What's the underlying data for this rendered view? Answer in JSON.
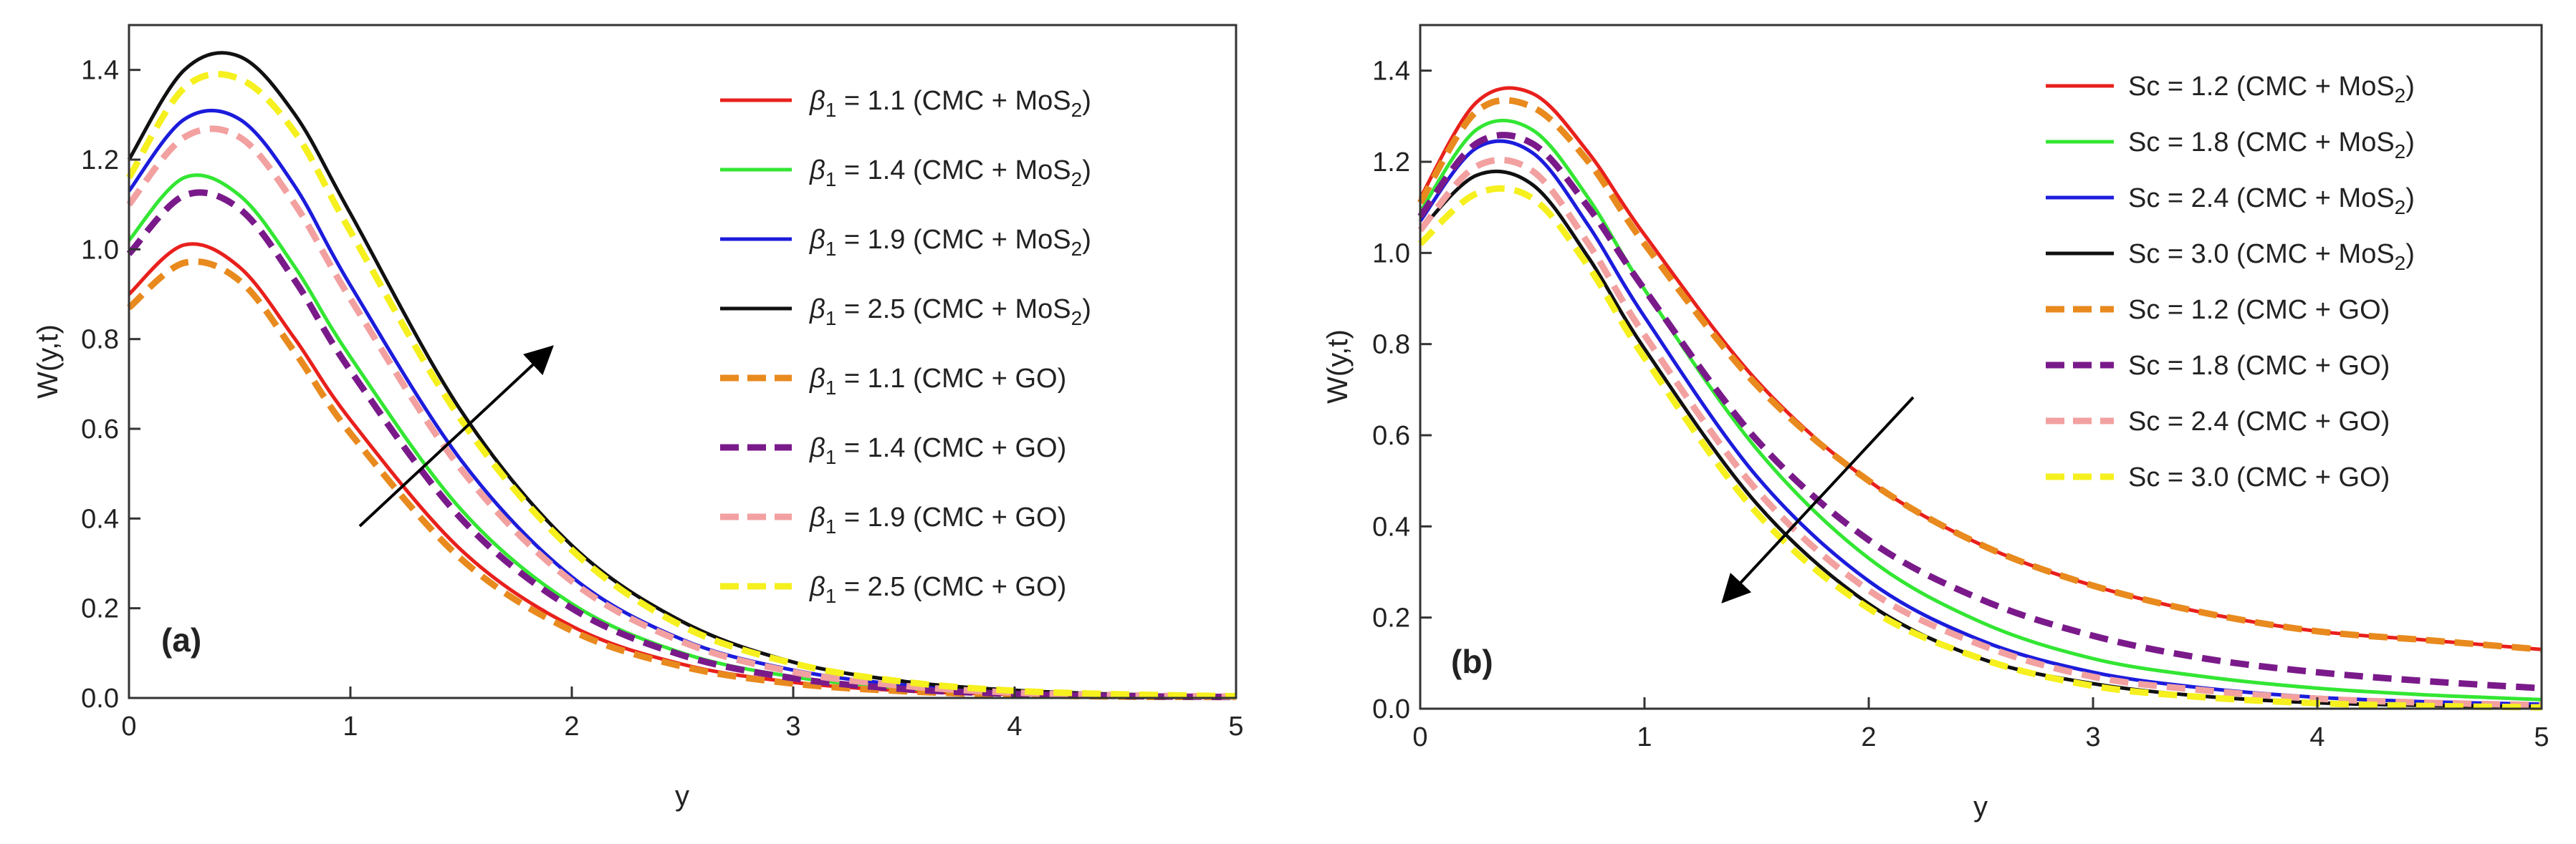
{
  "colors": {
    "red": "#e8201c",
    "green": "#33e633",
    "blue": "#1c1cdc",
    "black": "#111111",
    "orange": "#e88a1e",
    "purple": "#7a1a8a",
    "pink": "#f2a0a0",
    "yellow": "#f5f01e"
  },
  "chart_data": [
    {
      "type": "line",
      "panel_label": "(a)",
      "xlabel": "y",
      "ylabel": "W(y,t)",
      "xlim": [
        0,
        5
      ],
      "ylim": [
        0,
        1.5
      ],
      "xticks": [
        "0",
        "1",
        "2",
        "3",
        "4",
        "5"
      ],
      "yticks": [
        "0.0",
        "0.2",
        "0.4",
        "0.6",
        "0.8",
        "1.0",
        "1.2",
        "1.4"
      ],
      "grid": false,
      "legend_position": "top-right",
      "annotation": "arrow pointing up-right (increasing β1)",
      "x": [
        0,
        0.25,
        0.5,
        0.75,
        1,
        1.5,
        2,
        2.5,
        3,
        3.5,
        4,
        4.5,
        5
      ],
      "series": [
        {
          "symbol": "β",
          "sub": "1",
          "rest": " = 1.1  (CMC + MoS",
          "sub2": "2",
          "end": ")",
          "color": "red",
          "dash": "solid",
          "values": [
            0.9,
            1.01,
            0.96,
            0.8,
            0.62,
            0.33,
            0.16,
            0.075,
            0.035,
            0.016,
            0.008,
            0.004,
            0.002
          ]
        },
        {
          "symbol": "β",
          "sub": "1",
          "rest": " = 1.4  (CMC + MoS",
          "sub2": "2",
          "end": ")",
          "color": "green",
          "dash": "solid",
          "values": [
            1.02,
            1.16,
            1.12,
            0.96,
            0.76,
            0.42,
            0.21,
            0.1,
            0.047,
            0.022,
            0.01,
            0.005,
            0.002
          ]
        },
        {
          "symbol": "β",
          "sub": "1",
          "rest": " = 1.9  (CMC + MoS",
          "sub2": "2",
          "end": ")",
          "color": "blue",
          "dash": "solid",
          "values": [
            1.13,
            1.29,
            1.29,
            1.14,
            0.92,
            0.53,
            0.27,
            0.13,
            0.062,
            0.029,
            0.013,
            0.006,
            0.003
          ]
        },
        {
          "symbol": "β",
          "sub": "1",
          "rest": " = 2.5  (CMC + MoS",
          "sub2": "2",
          "end": ")",
          "color": "black",
          "dash": "solid",
          "values": [
            1.2,
            1.4,
            1.43,
            1.3,
            1.08,
            0.64,
            0.34,
            0.17,
            0.08,
            0.037,
            0.017,
            0.008,
            0.004
          ]
        },
        {
          "symbol": "β",
          "sub": "1",
          "rest": " = 1.1  (CMC + GO)",
          "sub2": "",
          "end": "",
          "color": "orange",
          "dash": "dashed",
          "values": [
            0.87,
            0.97,
            0.93,
            0.77,
            0.59,
            0.31,
            0.15,
            0.07,
            0.032,
            0.015,
            0.007,
            0.003,
            0.002
          ]
        },
        {
          "symbol": "β",
          "sub": "1",
          "rest": " = 1.4  (CMC + GO)",
          "sub2": "",
          "end": "",
          "color": "purple",
          "dash": "dashed",
          "values": [
            0.99,
            1.12,
            1.09,
            0.93,
            0.73,
            0.4,
            0.2,
            0.095,
            0.044,
            0.02,
            0.009,
            0.004,
            0.002
          ]
        },
        {
          "symbol": "β",
          "sub": "1",
          "rest": " = 1.9  (CMC + GO)",
          "sub2": "",
          "end": "",
          "color": "pink",
          "dash": "dashed",
          "values": [
            1.1,
            1.25,
            1.25,
            1.1,
            0.89,
            0.51,
            0.26,
            0.125,
            0.058,
            0.027,
            0.012,
            0.006,
            0.003
          ]
        },
        {
          "symbol": "β",
          "sub": "1",
          "rest": " = 2.5  (CMC + GO)",
          "sub2": "",
          "end": "",
          "color": "yellow",
          "dash": "dashed",
          "values": [
            1.16,
            1.36,
            1.38,
            1.26,
            1.04,
            0.62,
            0.33,
            0.16,
            0.077,
            0.036,
            0.016,
            0.008,
            0.004
          ]
        }
      ]
    },
    {
      "type": "line",
      "panel_label": "(b)",
      "xlabel": "y",
      "ylabel": "W(y,t)",
      "xlim": [
        0,
        5
      ],
      "ylim": [
        0,
        1.5
      ],
      "xticks": [
        "0",
        "1",
        "2",
        "3",
        "4",
        "5"
      ],
      "yticks": [
        "0.0",
        "0.2",
        "0.4",
        "0.6",
        "0.8",
        "1.0",
        "1.2",
        "1.4"
      ],
      "grid": false,
      "legend_position": "top-right",
      "annotation": "arrow pointing down-left (increasing Sc)",
      "x": [
        0,
        0.25,
        0.5,
        0.75,
        1,
        1.5,
        2,
        2.5,
        3,
        3.5,
        4,
        4.5,
        5
      ],
      "series": [
        {
          "symbol": "",
          "sub": "",
          "rest": "Sc = 1.2  (CMC + MoS",
          "sub2": "2",
          "end": ")",
          "color": "red",
          "dash": "solid",
          "values": [
            1.12,
            1.33,
            1.35,
            1.22,
            1.04,
            0.72,
            0.5,
            0.36,
            0.27,
            0.21,
            0.17,
            0.15,
            0.13
          ]
        },
        {
          "symbol": "",
          "sub": "",
          "rest": "Sc = 1.8  (CMC + MoS",
          "sub2": "2",
          "end": ")",
          "color": "green",
          "dash": "solid",
          "values": [
            1.09,
            1.27,
            1.27,
            1.12,
            0.92,
            0.57,
            0.33,
            0.19,
            0.11,
            0.07,
            0.045,
            0.03,
            0.02
          ]
        },
        {
          "symbol": "",
          "sub": "",
          "rest": "Sc = 2.4  (CMC + MoS",
          "sub2": "2",
          "end": ")",
          "color": "blue",
          "dash": "solid",
          "values": [
            1.07,
            1.23,
            1.22,
            1.06,
            0.86,
            0.51,
            0.28,
            0.15,
            0.08,
            0.045,
            0.025,
            0.015,
            0.01
          ]
        },
        {
          "symbol": "",
          "sub": "",
          "rest": "Sc = 3.0  (CMC + MoS",
          "sub2": "2",
          "end": ")",
          "color": "black",
          "dash": "solid",
          "values": [
            1.05,
            1.17,
            1.15,
            0.99,
            0.79,
            0.45,
            0.23,
            0.11,
            0.055,
            0.027,
            0.013,
            0.007,
            0.004
          ]
        },
        {
          "symbol": "",
          "sub": "",
          "rest": "Sc = 1.2  (CMC + GO)",
          "sub2": "",
          "end": "",
          "color": "orange",
          "dash": "dashed",
          "values": [
            1.11,
            1.31,
            1.32,
            1.2,
            1.02,
            0.71,
            0.5,
            0.36,
            0.27,
            0.21,
            0.17,
            0.15,
            0.13
          ]
        },
        {
          "symbol": "",
          "sub": "",
          "rest": "Sc = 1.8  (CMC + GO)",
          "sub2": "",
          "end": "",
          "color": "purple",
          "dash": "dashed",
          "values": [
            1.08,
            1.24,
            1.24,
            1.1,
            0.92,
            0.59,
            0.37,
            0.24,
            0.16,
            0.11,
            0.08,
            0.06,
            0.045
          ]
        },
        {
          "symbol": "",
          "sub": "",
          "rest": "Sc = 2.4  (CMC + GO)",
          "sub2": "",
          "end": "",
          "color": "pink",
          "dash": "dashed",
          "values": [
            1.05,
            1.19,
            1.18,
            1.02,
            0.82,
            0.48,
            0.26,
            0.14,
            0.07,
            0.04,
            0.022,
            0.013,
            0.008
          ]
        },
        {
          "symbol": "",
          "sub": "",
          "rest": "Sc = 3.0  (CMC + GO)",
          "sub2": "",
          "end": "",
          "color": "yellow",
          "dash": "dashed",
          "values": [
            1.02,
            1.13,
            1.12,
            0.97,
            0.77,
            0.43,
            0.22,
            0.11,
            0.05,
            0.025,
            0.012,
            0.006,
            0.003
          ]
        }
      ]
    }
  ]
}
